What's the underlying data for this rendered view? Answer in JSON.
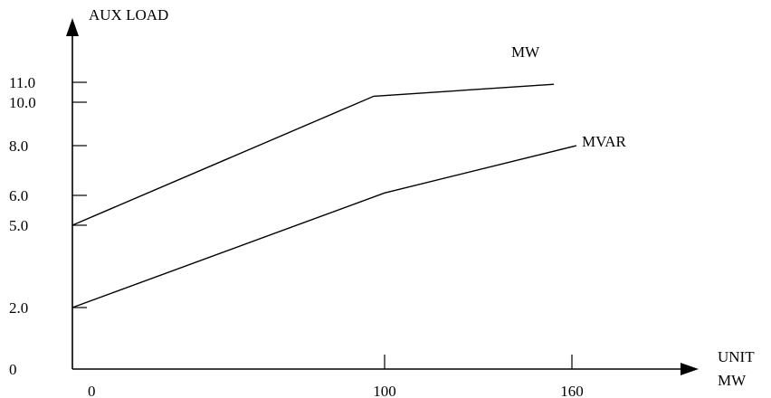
{
  "chart_data": {
    "type": "line",
    "title": "",
    "ylabel": "AUX LOAD",
    "xlabel_lines": [
      "UNIT",
      "MW"
    ],
    "x_ticks": [
      {
        "value": 0,
        "label": "0"
      },
      {
        "value": 100,
        "label": "100"
      },
      {
        "value": 160,
        "label": "160"
      }
    ],
    "y_ticks": [
      {
        "value": 0,
        "label": "0"
      },
      {
        "value": 2.0,
        "label": "2.0"
      },
      {
        "value": 5.0,
        "label": "5.0"
      },
      {
        "value": 6.0,
        "label": "6.0"
      },
      {
        "value": 8.0,
        "label": "8.0"
      },
      {
        "value": 10.0,
        "label": "10.0"
      },
      {
        "value": 11.0,
        "label": "11.0"
      }
    ],
    "xlim": [
      0,
      200
    ],
    "ylim": [
      0,
      12
    ],
    "grid": false,
    "series": [
      {
        "name": "MW",
        "x": [
          0,
          100,
          160
        ],
        "y": [
          5.0,
          10.3,
          10.9
        ]
      },
      {
        "name": "MVAR",
        "x": [
          0,
          100,
          160
        ],
        "y": [
          2.0,
          6.1,
          8.0
        ]
      }
    ]
  }
}
